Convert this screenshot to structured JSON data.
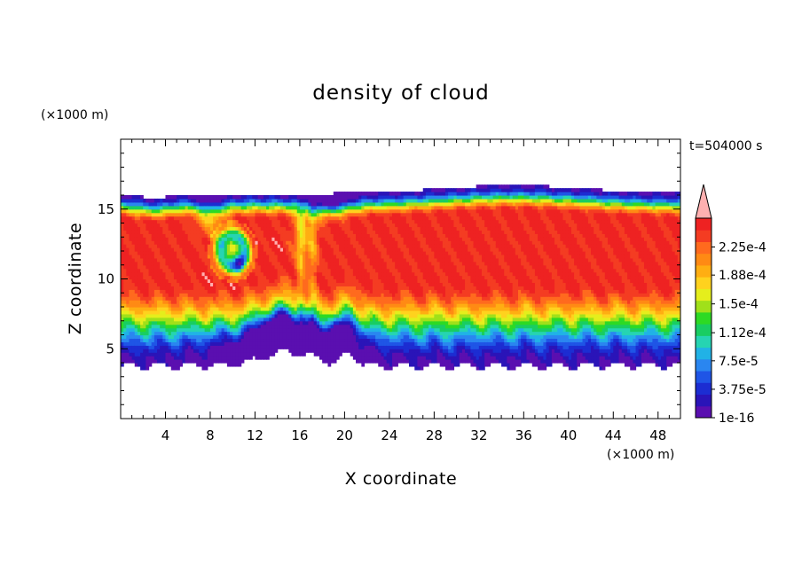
{
  "chart_data": {
    "type": "heatmap",
    "title": "density of cloud",
    "xlabel": "X coordinate",
    "ylabel": "Z coordinate",
    "x_unit": "(×1000 m)",
    "y_unit": "(×1000 m)",
    "time_label": "t=504000 s",
    "xlim": [
      0,
      50
    ],
    "ylim": [
      0,
      20
    ],
    "x_ticks": [
      4,
      8,
      12,
      16,
      20,
      24,
      28,
      32,
      36,
      40,
      44,
      48
    ],
    "y_ticks": [
      5,
      10,
      15
    ],
    "colorbar": {
      "labels": [
        "1e-16",
        "3.75e-5",
        "7.5e-5",
        "1.12e-4",
        "1.5e-4",
        "1.88e-4",
        "2.25e-4"
      ],
      "label_values": [
        0,
        3.75e-05,
        7.5e-05,
        0.000112,
        0.00015,
        0.000188,
        0.000225
      ],
      "vmax": 0.000263,
      "overflow_arrow": true,
      "colors": [
        "#5a0fb0",
        "#2a14b8",
        "#1c2dd2",
        "#1f55e6",
        "#2a86f0",
        "#21b2e6",
        "#26d4b2",
        "#19cd62",
        "#2dda24",
        "#a0e01a",
        "#e5ee1c",
        "#ffd21e",
        "#ffae12",
        "#ff8a14",
        "#ff6a1e",
        "#f43c22",
        "#ee2222",
        "#ffb0b0"
      ]
    },
    "cloud_layer": {
      "base_z": 3.4,
      "top_z": 16.1,
      "max_density_z_range": [
        9.5,
        14
      ],
      "vortex_center": [
        10,
        12
      ],
      "updraft_x_range": [
        15,
        18
      ]
    }
  }
}
